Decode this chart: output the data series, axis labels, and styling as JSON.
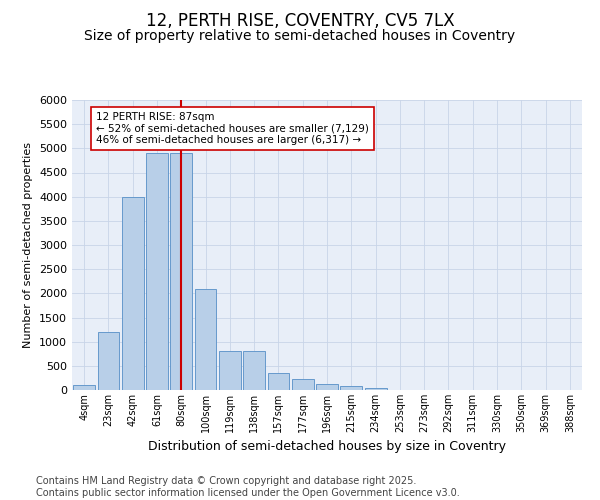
{
  "title_line1": "12, PERTH RISE, COVENTRY, CV5 7LX",
  "title_line2": "Size of property relative to semi-detached houses in Coventry",
  "xlabel": "Distribution of semi-detached houses by size in Coventry",
  "ylabel": "Number of semi-detached properties",
  "categories": [
    "4sqm",
    "23sqm",
    "42sqm",
    "61sqm",
    "80sqm",
    "100sqm",
    "119sqm",
    "138sqm",
    "157sqm",
    "177sqm",
    "196sqm",
    "215sqm",
    "234sqm",
    "253sqm",
    "273sqm",
    "292sqm",
    "311sqm",
    "330sqm",
    "350sqm",
    "369sqm",
    "388sqm"
  ],
  "values": [
    100,
    1200,
    4000,
    4900,
    4900,
    2100,
    800,
    800,
    350,
    230,
    130,
    80,
    50,
    0,
    0,
    0,
    0,
    0,
    0,
    0,
    0
  ],
  "bar_color": "#b8cfe8",
  "bar_edge_color": "#6699cc",
  "vline_x": 4,
  "vline_color": "#cc0000",
  "annotation_text": "12 PERTH RISE: 87sqm\n← 52% of semi-detached houses are smaller (7,129)\n46% of semi-detached houses are larger (6,317) →",
  "annotation_box_color": "#ffffff",
  "annotation_box_edge": "#cc0000",
  "ylim": [
    0,
    6000
  ],
  "yticks": [
    0,
    500,
    1000,
    1500,
    2000,
    2500,
    3000,
    3500,
    4000,
    4500,
    5000,
    5500,
    6000
  ],
  "grid_color": "#c8d4e8",
  "bg_color": "#e8eef8",
  "footnote": "Contains HM Land Registry data © Crown copyright and database right 2025.\nContains public sector information licensed under the Open Government Licence v3.0.",
  "title_fontsize": 12,
  "subtitle_fontsize": 10,
  "footnote_fontsize": 7
}
